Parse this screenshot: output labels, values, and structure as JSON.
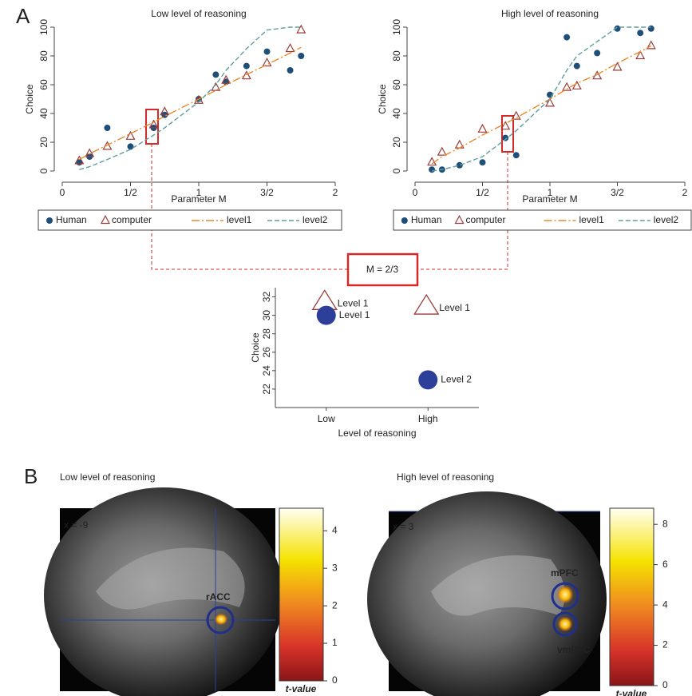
{
  "panel_labels": [
    "A",
    "B"
  ],
  "chart_data": [
    {
      "type": "line",
      "title": "Low level of reasoning",
      "x_label": "Parameter M",
      "y_label": "Choice",
      "x": [
        0.125,
        0.2,
        0.33,
        0.5,
        0.67,
        0.75,
        1,
        1.125,
        1.2,
        1.35,
        1.5,
        1.67,
        1.75
      ],
      "xlim": [
        0,
        2
      ],
      "xticks": [
        0,
        {
          "value": 0.5,
          "label": "1/2"
        },
        1,
        {
          "value": 1.5,
          "label": "3/2"
        },
        2
      ],
      "ylim": [
        0,
        100
      ],
      "yticks": [
        0,
        20,
        40,
        60,
        80,
        100
      ],
      "series": [
        {
          "name": "Human",
          "marker": "circle",
          "color": "#1f4e79",
          "values": [
            6,
            10,
            30,
            17,
            30,
            39,
            50,
            67,
            62,
            73,
            83,
            70,
            80
          ]
        },
        {
          "name": "computer",
          "marker": "triangle",
          "color": "#9b3b3b",
          "values": [
            7,
            12,
            17,
            24,
            32,
            41,
            49,
            58,
            63,
            66,
            75,
            85,
            98
          ]
        },
        {
          "name": "level1",
          "line": "dash-dot",
          "color": "#e8892b",
          "values": [
            8,
            12,
            18,
            26,
            34,
            38,
            50,
            56,
            60,
            67,
            74,
            82,
            86
          ]
        },
        {
          "name": "level2",
          "line": "dashed",
          "color": "#5f9ea0",
          "values": [
            1,
            3,
            8,
            15,
            25,
            30,
            48,
            60,
            70,
            85,
            98,
            100,
            100
          ]
        }
      ]
    },
    {
      "type": "line",
      "title": "High level of reasoning",
      "x_label": "Parameter M",
      "y_label": "Choice",
      "x": [
        0.125,
        0.2,
        0.33,
        0.5,
        0.67,
        0.75,
        1,
        1.125,
        1.2,
        1.35,
        1.5,
        1.67,
        1.75
      ],
      "xlim": [
        0,
        2
      ],
      "xticks": [
        0,
        {
          "value": 0.5,
          "label": "1/2"
        },
        1,
        {
          "value": 1.5,
          "label": "3/2"
        },
        2
      ],
      "ylim": [
        0,
        100
      ],
      "yticks": [
        0,
        20,
        40,
        60,
        80,
        100
      ],
      "series": [
        {
          "name": "Human",
          "marker": "circle",
          "color": "#1f4e79",
          "values": [
            1,
            1,
            4,
            6,
            23,
            11,
            53,
            93,
            73,
            82,
            99,
            96,
            99
          ]
        },
        {
          "name": "computer",
          "marker": "triangle",
          "color": "#9b3b3b",
          "values": [
            6,
            13,
            18,
            29,
            31,
            38,
            47,
            58,
            59,
            66,
            72,
            80,
            87
          ]
        },
        {
          "name": "level1",
          "line": "dash-dot",
          "color": "#e8892b",
          "values": [
            5,
            10,
            16,
            25,
            33,
            37,
            50,
            57,
            61,
            67,
            75,
            83,
            87
          ]
        },
        {
          "name": "level2",
          "line": "dashed",
          "color": "#5f9ea0",
          "values": [
            0,
            1,
            4,
            10,
            22,
            28,
            50,
            70,
            80,
            90,
            100,
            100,
            100
          ]
        }
      ]
    },
    {
      "type": "scatter",
      "annotation": "M = 2/3",
      "x_label": "Level of reasoning",
      "y_label": "Choice",
      "categories": [
        "Low",
        "High"
      ],
      "ylim": [
        20,
        33
      ],
      "yticks": [
        22,
        24,
        26,
        28,
        30,
        32
      ],
      "series": [
        {
          "marker": "triangle",
          "color": "#9b3b3b",
          "values": [
            31.5,
            31
          ],
          "point_labels": [
            "Level 1",
            "Level 1"
          ]
        },
        {
          "marker": "circle",
          "color": "#2e3f9a",
          "values": [
            30,
            23
          ],
          "point_labels": [
            "Level 1",
            "Level 2"
          ]
        }
      ]
    }
  ],
  "brain_panels": [
    {
      "title": "Low level  of reasoning",
      "coord": "x = -9",
      "regions": [
        "rACC"
      ],
      "colorbar": {
        "range": [
          0,
          4.6
        ],
        "ticks": [
          0,
          1,
          2,
          3,
          4
        ],
        "label": "t-value"
      }
    },
    {
      "title": "High level  of reasoning",
      "coord": "x = 3",
      "regions": [
        "mPFC",
        "vmPFC"
      ],
      "colorbar": {
        "range": [
          0,
          8.8
        ],
        "ticks": [
          0,
          2,
          4,
          6,
          8
        ],
        "label": "t-value"
      }
    }
  ]
}
